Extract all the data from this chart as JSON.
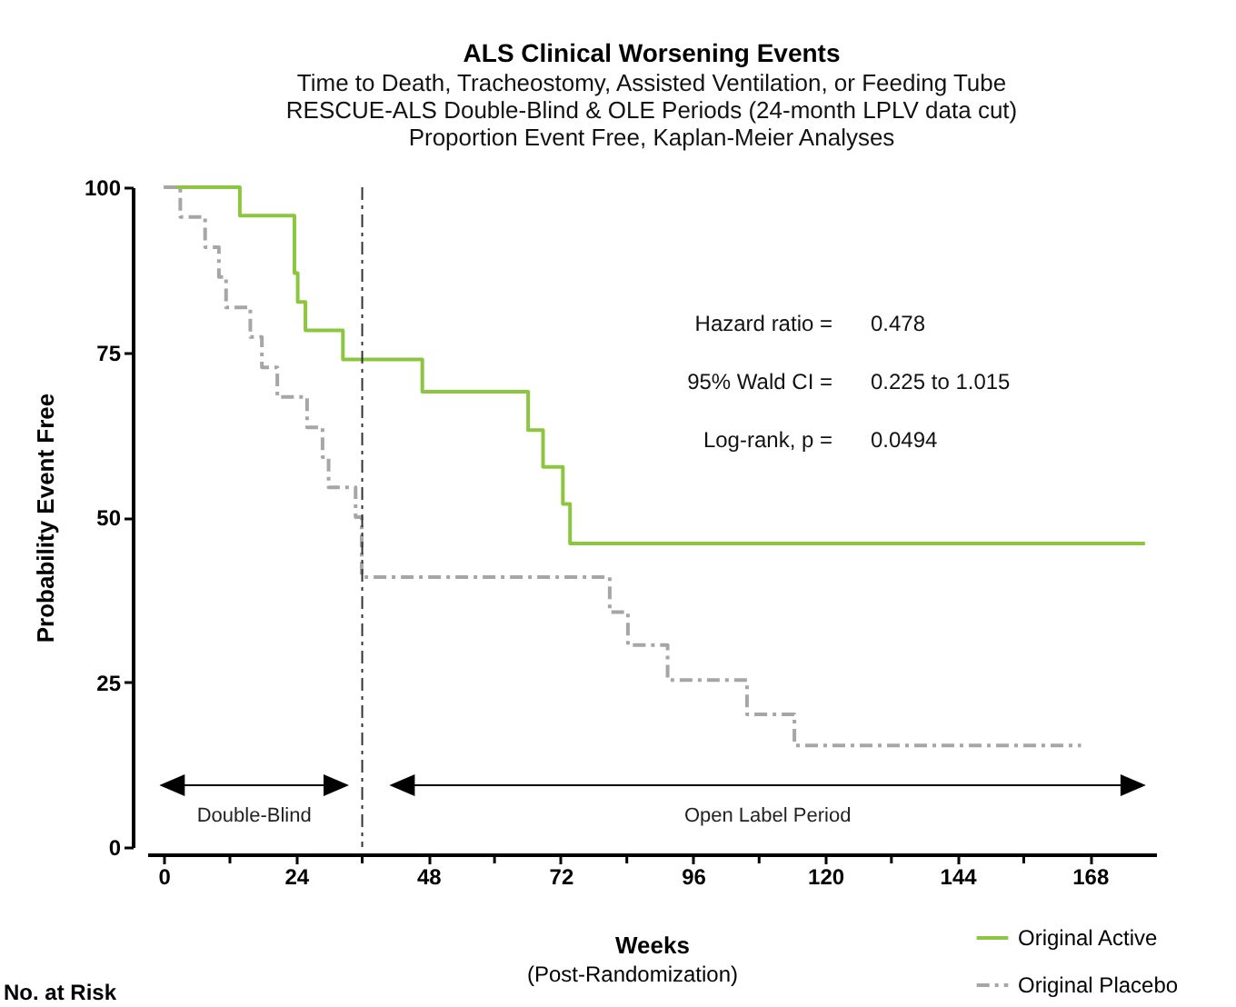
{
  "chart_data": {
    "type": "step",
    "title": "ALS Clinical Worsening Events",
    "subtitle": "Time to Death, Tracheostomy, Assisted Ventilation, or Feeding Tube\nRESCUE-ALS Double-Blind & OLE Periods (24-month LPLV data cut)\nProportion Event Free, Kaplan-Meier Analyses",
    "xlabel": "Weeks",
    "ylabel": "Probability Event Free",
    "series": [
      {
        "name": "Original Active",
        "color": "#8cc63f",
        "line_style": "solid",
        "x": [
          0,
          13.8,
          23.7,
          24.3,
          25.7,
          32.5,
          46.9,
          66.1,
          68.8,
          72.4,
          73.7,
          178
        ],
        "values": [
          100,
          95.7,
          87,
          82.6,
          78.3,
          73.9,
          69,
          63.2,
          57.6,
          52,
          46,
          46
        ]
      },
      {
        "name": "Original Placebo",
        "color": "#a6a6a6",
        "line_style": "dashed",
        "x": [
          0,
          3,
          7.5,
          10,
          11.3,
          15.7,
          17.8,
          20.6,
          26,
          28.8,
          29.9,
          34.8,
          35.9,
          80.9,
          84.2,
          91.4,
          105.8,
          114.4,
          166.4
        ],
        "values": [
          100,
          95.5,
          90.9,
          86.4,
          81.8,
          77.3,
          72.7,
          68.2,
          63.6,
          59.1,
          54.5,
          50,
          40.9,
          35.6,
          30.6,
          25.3,
          20.1,
          15.4,
          15.4
        ]
      }
    ],
    "xlim": [
      -3,
      180
    ],
    "ylim": [
      0,
      100
    ],
    "xticks": [
      0,
      {
        "value": 12,
        "label": null
      },
      24,
      {
        "value": 36,
        "label": null
      },
      48,
      {
        "value": 60,
        "label": null
      },
      72,
      {
        "value": 84,
        "label": null
      },
      96,
      {
        "value": 108,
        "label": null
      },
      120,
      {
        "value": 132,
        "label": null
      },
      144,
      {
        "value": 156,
        "label": null
      },
      168
    ],
    "yticks": [
      0,
      25,
      50,
      75,
      100
    ],
    "ref_lines": [
      {
        "axis": "x",
        "value": 36,
        "color": "#333333",
        "line_style": "dashed"
      }
    ],
    "annotations": [
      "Hazard ratio =",
      "0.478",
      "95% Wald CI =",
      "0.225 to 1.015",
      "Log-rank, p =",
      "0.0494",
      "(Post-Randomization)",
      "No. at Risk",
      "Double-Blind",
      "Open Label Period"
    ],
    "legend": "bottom right",
    "grid": false
  }
}
